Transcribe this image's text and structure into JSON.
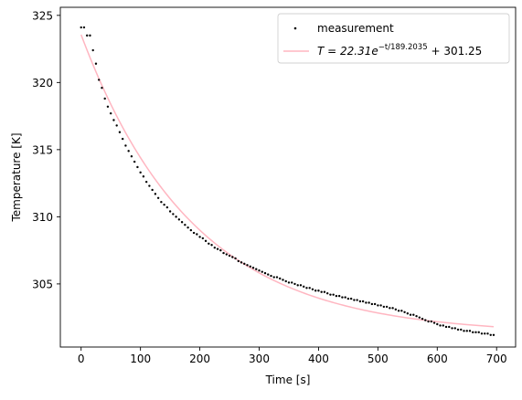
{
  "chart_data": {
    "type": "scatter",
    "title": "",
    "xlabel": "Time [s]",
    "ylabel": "Temperature [K]",
    "xlim": [
      -35,
      732
    ],
    "ylim": [
      300.3,
      325.6
    ],
    "xticks": [
      0,
      100,
      200,
      300,
      400,
      500,
      600,
      700
    ],
    "yticks": [
      305,
      310,
      315,
      320,
      325
    ],
    "grid": false,
    "legend_position": "top-right",
    "series": [
      {
        "name": "measurement",
        "kind": "points",
        "color": "#000000",
        "x": [
          0,
          5,
          10,
          15,
          20,
          25,
          30,
          35,
          40,
          45,
          50,
          55,
          60,
          65,
          70,
          75,
          80,
          85,
          90,
          95,
          100,
          105,
          110,
          115,
          120,
          125,
          130,
          135,
          140,
          145,
          150,
          155,
          160,
          165,
          170,
          175,
          180,
          185,
          190,
          195,
          200,
          205,
          210,
          215,
          220,
          225,
          230,
          235,
          240,
          245,
          250,
          255,
          260,
          265,
          270,
          275,
          280,
          285,
          290,
          295,
          300,
          305,
          310,
          315,
          320,
          325,
          330,
          335,
          340,
          345,
          350,
          355,
          360,
          365,
          370,
          375,
          380,
          385,
          390,
          395,
          400,
          405,
          410,
          415,
          420,
          425,
          430,
          435,
          440,
          445,
          450,
          455,
          460,
          465,
          470,
          475,
          480,
          485,
          490,
          495,
          500,
          505,
          510,
          515,
          520,
          525,
          530,
          535,
          540,
          545,
          550,
          555,
          560,
          565,
          570,
          575,
          580,
          585,
          590,
          595,
          600,
          605,
          610,
          615,
          620,
          625,
          630,
          635,
          640,
          645,
          650,
          655,
          660,
          665,
          670,
          675,
          680,
          685,
          690,
          695
        ],
        "y": [
          324.1,
          324.1,
          323.5,
          323.5,
          322.4,
          321.4,
          320.2,
          319.6,
          318.8,
          318.2,
          317.7,
          317.2,
          316.8,
          316.3,
          315.8,
          315.3,
          314.9,
          314.5,
          314.1,
          313.7,
          313.3,
          313.0,
          312.6,
          312.3,
          312.0,
          311.7,
          311.4,
          311.1,
          310.9,
          310.7,
          310.4,
          310.2,
          310.0,
          309.8,
          309.6,
          309.4,
          309.2,
          309.0,
          308.8,
          308.7,
          308.5,
          308.4,
          308.2,
          308.0,
          307.9,
          307.7,
          307.6,
          307.5,
          307.3,
          307.2,
          307.1,
          307.0,
          306.9,
          306.7,
          306.6,
          306.5,
          306.4,
          306.3,
          306.2,
          306.1,
          306.0,
          305.9,
          305.8,
          305.7,
          305.6,
          305.5,
          305.5,
          305.4,
          305.3,
          305.2,
          305.1,
          305.1,
          305.0,
          304.9,
          304.9,
          304.8,
          304.7,
          304.7,
          304.6,
          304.5,
          304.5,
          304.4,
          304.4,
          304.3,
          304.2,
          304.2,
          304.1,
          304.1,
          304.0,
          304.0,
          303.9,
          303.9,
          303.8,
          303.8,
          303.7,
          303.7,
          303.6,
          303.6,
          303.5,
          303.5,
          303.4,
          303.4,
          303.3,
          303.3,
          303.2,
          303.2,
          303.1,
          303.0,
          303.0,
          302.9,
          302.8,
          302.7,
          302.7,
          302.6,
          302.5,
          302.4,
          302.3,
          302.2,
          302.2,
          302.1,
          302.0,
          301.9,
          301.9,
          301.8,
          301.8,
          301.7,
          301.7,
          301.6,
          301.6,
          301.5,
          301.5,
          301.5,
          301.4,
          301.4,
          301.4,
          301.3,
          301.3,
          301.3,
          301.2,
          301.2
        ]
      },
      {
        "name": "T = 22.31e^{-t/189.2035} + 301.25",
        "kind": "line",
        "color": "#ffb6c1",
        "formula": {
          "A": 22.31,
          "tau": 189.2035,
          "C": 301.25,
          "t_start": 0,
          "t_end": 695
        }
      }
    ]
  },
  "legend": {
    "measurement_label": "measurement",
    "fit_label_prefix": "T = 22.31e",
    "fit_label_exponent": "−t/189.2035",
    "fit_label_suffix": " + 301.25"
  }
}
